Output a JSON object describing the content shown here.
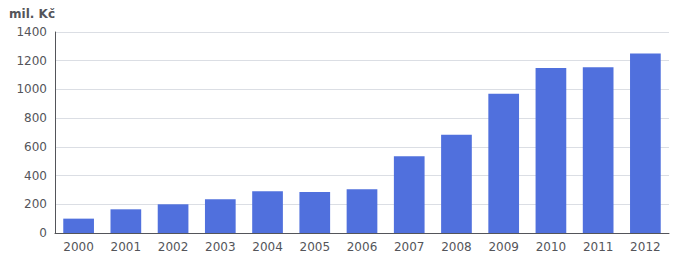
{
  "chart_data": {
    "type": "bar",
    "ylabel": "mil. Kč",
    "categories": [
      "2000",
      "2001",
      "2002",
      "2003",
      "2004",
      "2005",
      "2006",
      "2007",
      "2008",
      "2009",
      "2010",
      "2011",
      "2012"
    ],
    "values": [
      100,
      165,
      200,
      235,
      290,
      285,
      305,
      535,
      685,
      970,
      1150,
      1155,
      1250
    ],
    "ylim": [
      0,
      1400
    ],
    "yticks": [
      0,
      200,
      400,
      600,
      800,
      1000,
      1200,
      1400
    ],
    "grid": true
  }
}
